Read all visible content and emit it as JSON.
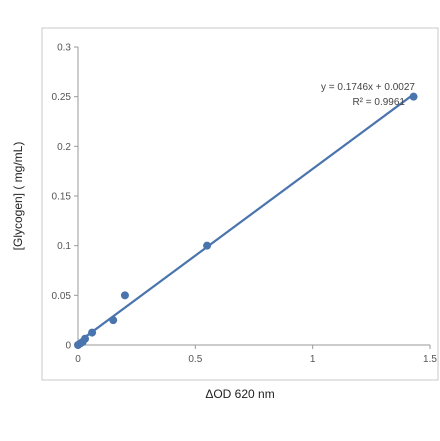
{
  "chart_data": {
    "type": "scatter",
    "title": "",
    "xlabel": "ΔOD 620 nm",
    "ylabel": "[Glycogen] ( mg/mL)",
    "xlim": [
      0,
      1.5
    ],
    "ylim": [
      0,
      0.3
    ],
    "x_ticks": [
      0,
      0.5,
      1,
      1.5
    ],
    "x_tick_labels": [
      "0",
      "0.5",
      "1",
      "1.5"
    ],
    "y_ticks": [
      0,
      0.05,
      0.1,
      0.15,
      0.2,
      0.25,
      0.3
    ],
    "y_tick_labels": [
      "0",
      "0.05",
      "0.1",
      "0.15",
      "0.2",
      "0.25",
      "0.3"
    ],
    "grid": false,
    "legend": "none",
    "series": [
      {
        "color": "#4a74ad",
        "points": [
          {
            "x": 0.0,
            "y": 0.0
          },
          {
            "x": 0.01,
            "y": 0.0016
          },
          {
            "x": 0.02,
            "y": 0.0031
          },
          {
            "x": 0.03,
            "y": 0.0063
          },
          {
            "x": 0.06,
            "y": 0.0125
          },
          {
            "x": 0.15,
            "y": 0.025
          },
          {
            "x": 0.2,
            "y": 0.05
          },
          {
            "x": 0.55,
            "y": 0.1
          },
          {
            "x": 1.43,
            "y": 0.25
          }
        ]
      }
    ],
    "trendline": {
      "slope": 0.1746,
      "intercept": 0.0027,
      "x_range": [
        0,
        1.43
      ],
      "color": "#4a74ad",
      "equation": "y = 0.1746x + 0.0027",
      "r_squared": "R² = 0.9961"
    }
  },
  "colors": {
    "series": "#4a74ad",
    "axis": "#9a9a9a",
    "frame": "#c8c8c8"
  }
}
